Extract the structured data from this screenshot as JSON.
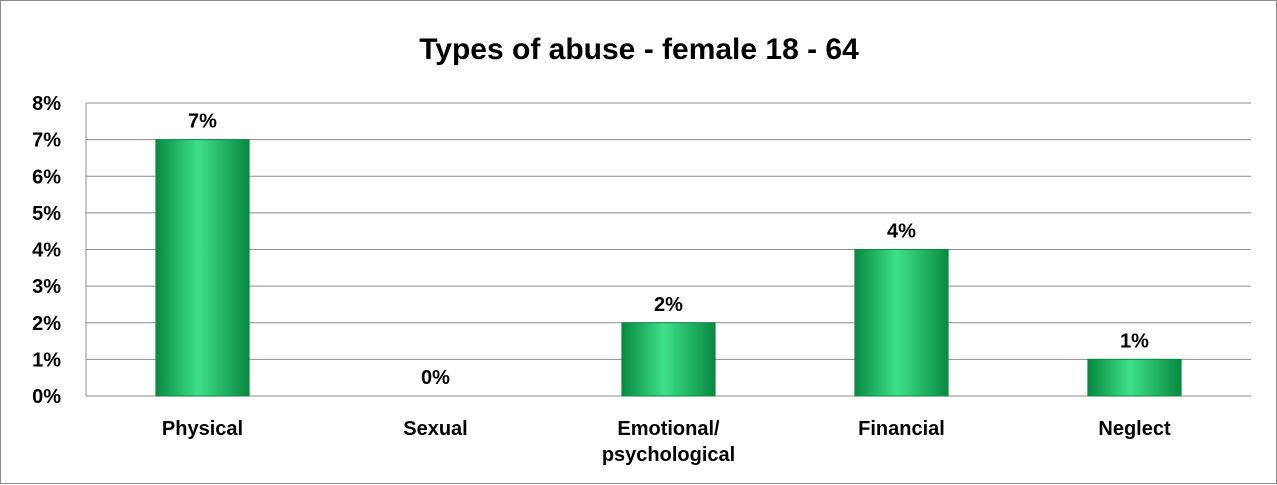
{
  "chart_data": {
    "type": "bar",
    "title": "Types of abuse - female 18 - 64",
    "categories": [
      [
        "Physical"
      ],
      [
        "Sexual"
      ],
      [
        "Emotional/",
        "psychological"
      ],
      [
        "Financial"
      ],
      [
        "Neglect"
      ]
    ],
    "values": [
      7,
      0,
      2,
      4,
      1
    ],
    "data_labels": [
      "7%",
      "0%",
      "2%",
      "4%",
      "1%"
    ],
    "ylim": [
      0,
      8
    ],
    "yticks": [
      "0%",
      "1%",
      "2%",
      "3%",
      "4%",
      "5%",
      "6%",
      "7%",
      "8%"
    ],
    "grid": true,
    "legend": "none",
    "colors": {
      "bar": "#0cb85a",
      "bar_light": "#3fe08a",
      "bar_dark": "#078a40",
      "grid": "#8c8c8c",
      "axis": "#8c8c8c"
    }
  }
}
